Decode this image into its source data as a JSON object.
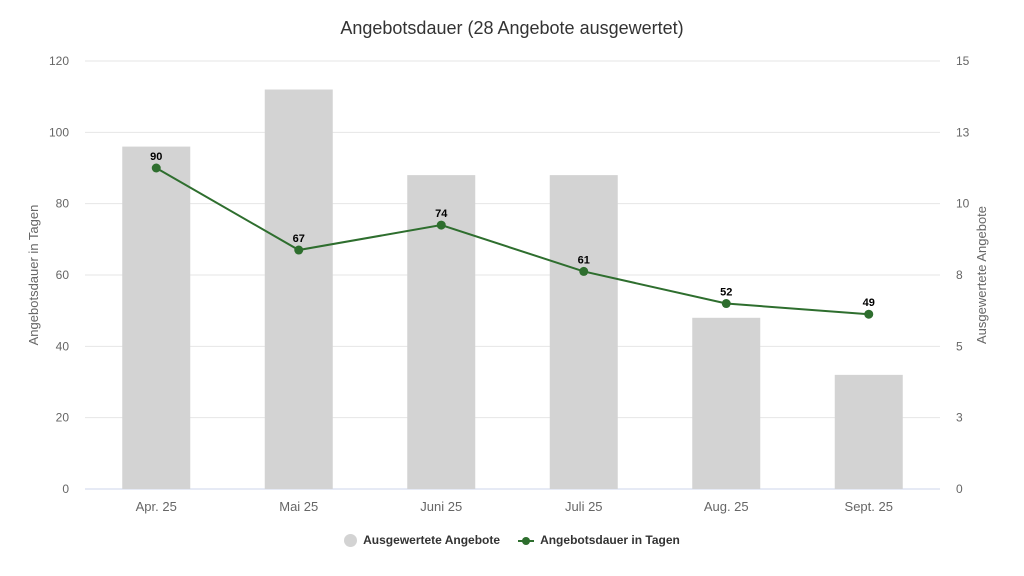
{
  "chart_data": {
    "type": "bar+line",
    "title": "Angebotsdauer (28 Angebote ausgewertet)",
    "categories": [
      "Apr. 25",
      "Mai 25",
      "Juni 25",
      "Juli 25",
      "Aug. 25",
      "Sept. 25"
    ],
    "series": [
      {
        "name": "Ausgewertete Angebote",
        "type": "bar",
        "axis": "right",
        "color": "#d3d3d3",
        "values": [
          12,
          14,
          11,
          11,
          6,
          4
        ]
      },
      {
        "name": "Angebotsdauer in Tagen",
        "type": "line",
        "axis": "left",
        "color": "#2e6e2e",
        "values": [
          90,
          67,
          74,
          61,
          52,
          49
        ],
        "data_labels": true
      }
    ],
    "ylabel": "Angebotsdauer in Tagen",
    "ylabel_right": "Ausgewertete Angebote",
    "ylim": [
      0,
      120
    ],
    "ylim_right": [
      0,
      15
    ],
    "yticks": [
      "0",
      "20",
      "40",
      "60",
      "80",
      "100",
      "120"
    ],
    "yticks_right": [
      "0",
      "3",
      "5",
      "8",
      "10",
      "13",
      "15"
    ],
    "grid": true,
    "legend_position": "bottom"
  },
  "colors": {
    "bar": "#d3d3d3",
    "line": "#2e6e2e",
    "grid": "#e6e6e6"
  }
}
